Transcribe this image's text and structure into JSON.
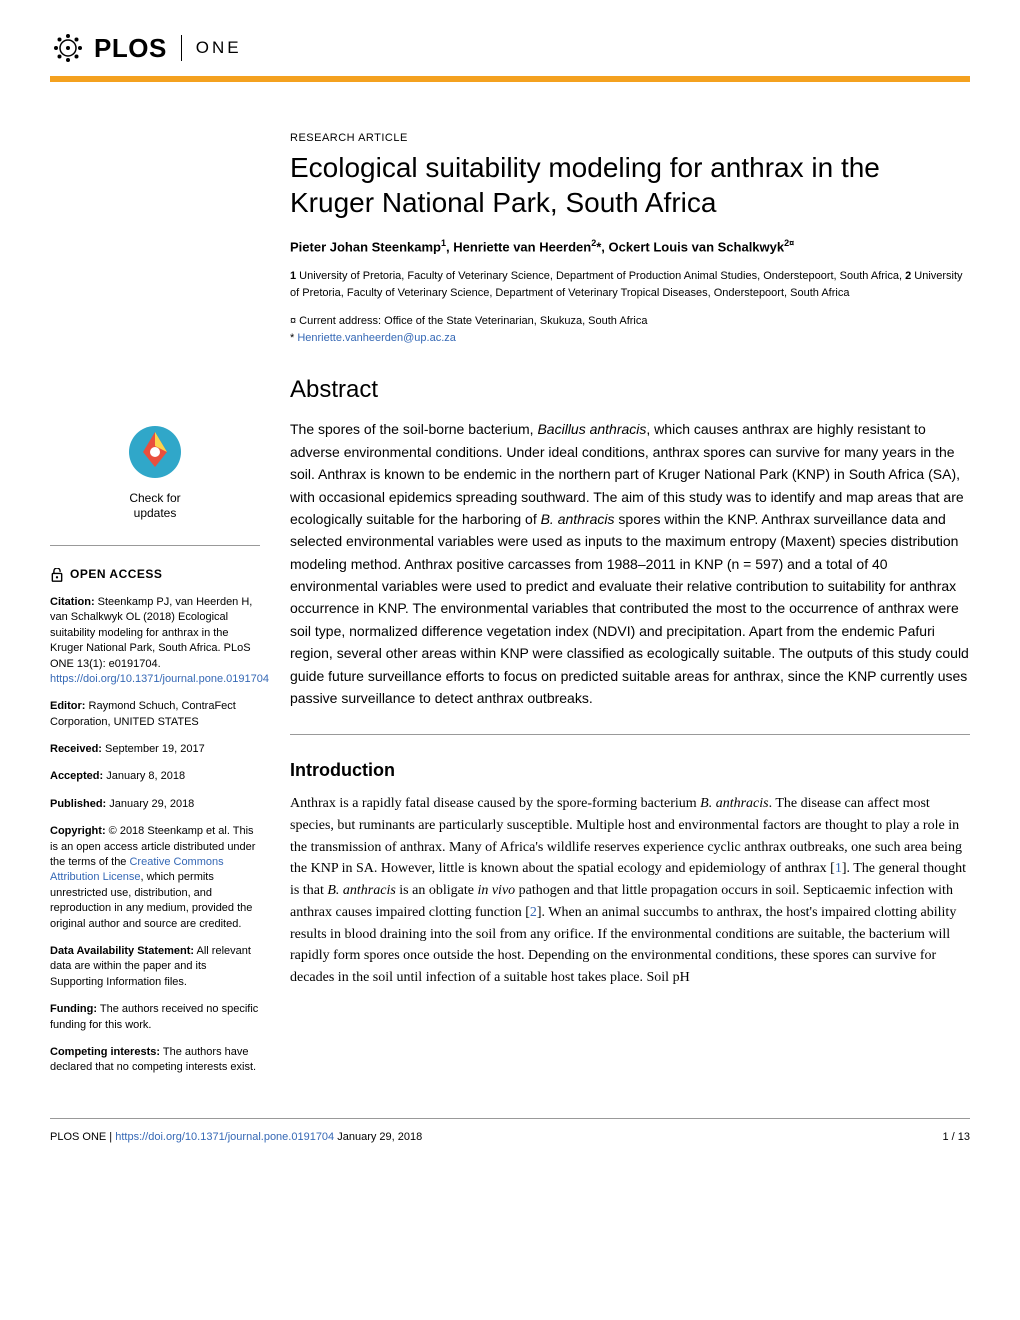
{
  "header": {
    "plos": "PLOS",
    "one": "ONE"
  },
  "colors": {
    "accent": "#f4a11f",
    "link": "#3568b5",
    "text": "#000000",
    "background": "#ffffff",
    "divider": "#999999"
  },
  "article": {
    "type": "RESEARCH ARTICLE",
    "title": "Ecological suitability modeling for anthrax in the Kruger National Park, South Africa",
    "authors_html": "Pieter Johan Steenkamp<sup>1</sup>, Henriette van Heerden<sup>2</sup>*, Ockert Louis van Schalkwyk<sup>2¤</sup>",
    "affiliations": {
      "a1": "1",
      "a1_text": " University of Pretoria, Faculty of Veterinary Science, Department of Production Animal Studies, Onderstepoort, South Africa, ",
      "a2": "2",
      "a2_text": " University of Pretoria, Faculty of Veterinary Science, Department of Veterinary Tropical Diseases, Onderstepoort, South Africa"
    },
    "notes": {
      "current": "¤ Current address: Office of the State Veterinarian, Skukuza, South Africa",
      "corresponding_prefix": "* ",
      "email": "Henriette.vanheerden@up.ac.za"
    },
    "abstract_heading": "Abstract",
    "abstract": "The spores of the soil-borne bacterium, Bacillus anthracis, which causes anthrax are highly resistant to adverse environmental conditions. Under ideal conditions, anthrax spores can survive for many years in the soil. Anthrax is known to be endemic in the northern part of Kruger National Park (KNP) in South Africa (SA), with occasional epidemics spreading southward. The aim of this study was to identify and map areas that are ecologically suitable for the harboring of B. anthracis spores within the KNP. Anthrax surveillance data and selected environmental variables were used as inputs to the maximum entropy (Maxent) species distribution modeling method. Anthrax positive carcasses from 1988–2011 in KNP (n = 597) and a total of 40 environmental variables were used to predict and evaluate their relative contribution to suitability for anthrax occurrence in KNP. The environmental variables that contributed the most to the occurrence of anthrax were soil type, normalized difference vegetation index (NDVI) and precipitation. Apart from the endemic Pafuri region, several other areas within KNP were classified as ecologically suitable. The outputs of this study could guide future surveillance efforts to focus on predicted suitable areas for anthrax, since the KNP currently uses passive surveillance to detect anthrax outbreaks.",
    "intro_heading": "Introduction",
    "intro_text": "Anthrax is a rapidly fatal disease caused by the spore-forming bacterium B. anthracis. The disease can affect most species, but ruminants are particularly susceptible. Multiple host and environmental factors are thought to play a role in the transmission of anthrax. Many of Africa's wildlife reserves experience cyclic anthrax outbreaks, one such area being the KNP in SA. However, little is known about the spatial ecology and epidemiology of anthrax [1]. The general thought is that B. anthracis is an obligate in vivo pathogen and that little propagation occurs in soil. Septicaemic infection with anthrax causes impaired clotting function [2]. When an animal succumbs to anthrax, the host's impaired clotting ability results in blood draining into the soil from any orifice. If the environmental conditions are suitable, the bacterium will rapidly form spores once outside the host. Depending on the environmental conditions, these spores can survive for decades in the soil until infection of a suitable host takes place. Soil pH"
  },
  "sidebar": {
    "check_line1": "Check for",
    "check_line2": "updates",
    "open_access": "OPEN ACCESS",
    "citation_label": "Citation:",
    "citation": " Steenkamp PJ, van Heerden H, van Schalkwyk OL (2018) Ecological suitability modeling for anthrax in the Kruger National Park, South Africa. PLoS ONE 13(1): e0191704. ",
    "citation_link": "https://doi.org/10.1371/journal.pone.0191704",
    "editor_label": "Editor:",
    "editor": " Raymond Schuch, ContraFect Corporation, UNITED STATES",
    "received_label": "Received:",
    "received": " September 19, 2017",
    "accepted_label": "Accepted:",
    "accepted": " January 8, 2018",
    "published_label": "Published:",
    "published": " January 29, 2018",
    "copyright_label": "Copyright:",
    "copyright_pre": " © 2018 Steenkamp et al. This is an open access article distributed under the terms of the ",
    "copyright_link": "Creative Commons Attribution License",
    "copyright_post": ", which permits unrestricted use, distribution, and reproduction in any medium, provided the original author and source are credited.",
    "data_label": "Data Availability Statement:",
    "data": " All relevant data are within the paper and its Supporting Information files.",
    "funding_label": "Funding:",
    "funding": " The authors received no specific funding for this work.",
    "competing_label": "Competing interests:",
    "competing": " The authors have declared that no competing interests exist."
  },
  "footer": {
    "journal": "PLOS ONE | ",
    "doi_link": "https://doi.org/10.1371/journal.pone.0191704",
    "date": "   January 29, 2018",
    "page": "1 / 13"
  }
}
